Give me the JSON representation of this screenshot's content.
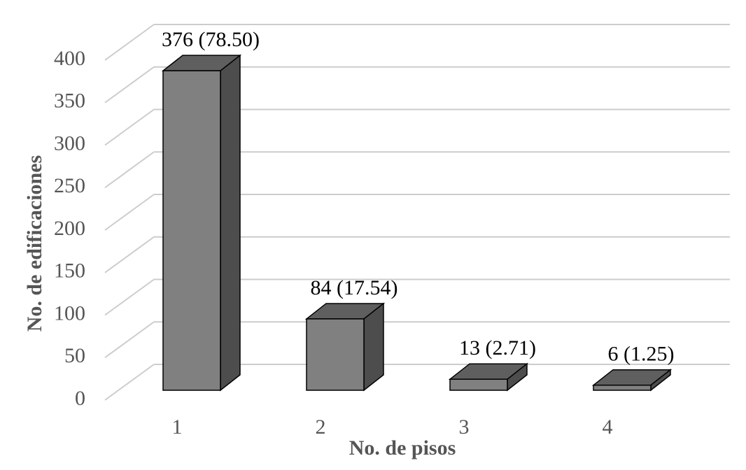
{
  "chart_data": {
    "type": "bar3d",
    "x_label": "No. de pisos",
    "y_label": "No. de edificaciones",
    "categories": [
      "1",
      "2",
      "3",
      "4"
    ],
    "values": [
      376,
      84,
      13,
      6
    ],
    "value_labels": [
      "376 (78.50)",
      "84 (17.54)",
      "13 (2.71)",
      "6 (1.25)"
    ],
    "color": "#808080",
    "ylim": [
      0,
      400
    ],
    "yticks": [
      0,
      50,
      100,
      150,
      200,
      250,
      300,
      350,
      400
    ],
    "grid": true
  }
}
